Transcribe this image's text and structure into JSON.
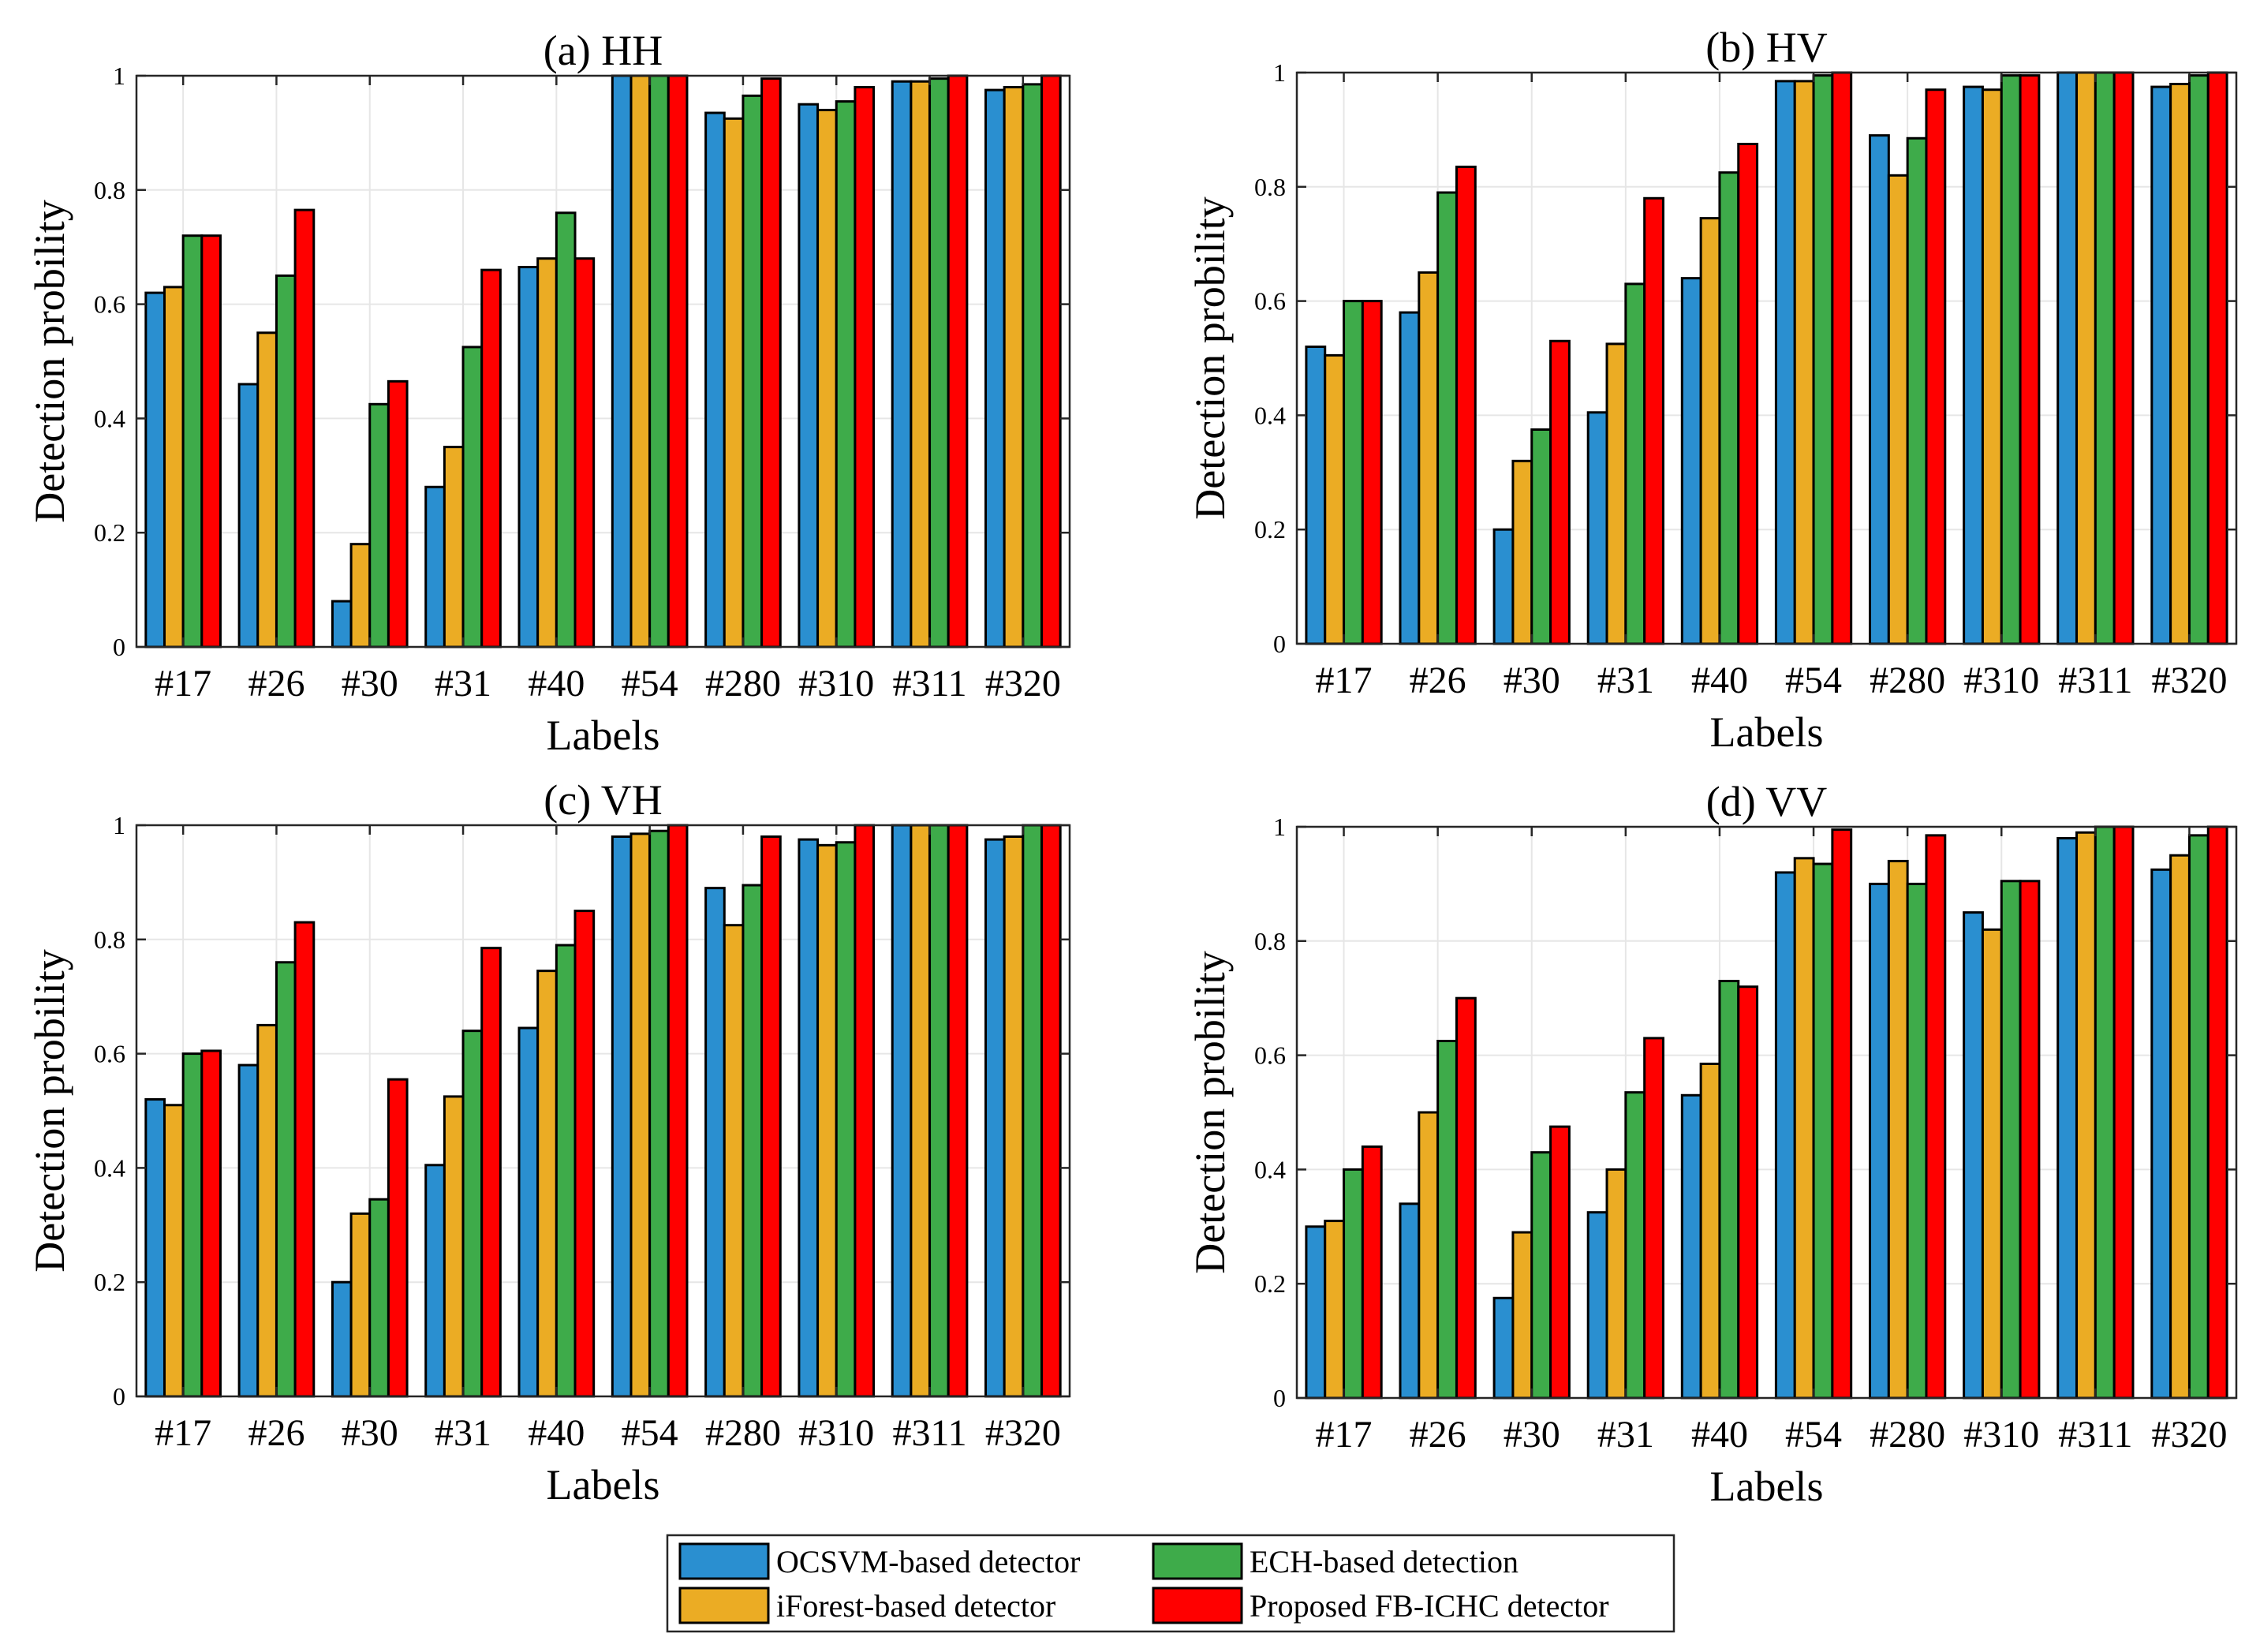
{
  "chart_data": [
    {
      "type": "bar",
      "title": "(a) HH",
      "xlabel": "Labels",
      "ylabel": "Detection probility",
      "ylim": [
        0,
        1
      ],
      "yticks": [
        "0",
        "0.2",
        "0.4",
        "0.6",
        "0.8",
        "1"
      ],
      "grid": true,
      "categories": [
        "#17",
        "#26",
        "#30",
        "#31",
        "#40",
        "#54",
        "#280",
        "#310",
        "#311",
        "#320"
      ],
      "series": [
        {
          "name": "OCSVM-based detector",
          "values": [
            0.62,
            0.46,
            0.08,
            0.28,
            0.665,
            1.0,
            0.935,
            0.95,
            0.99,
            0.975
          ]
        },
        {
          "name": "iForest-based detector",
          "values": [
            0.63,
            0.55,
            0.18,
            0.35,
            0.68,
            1.0,
            0.925,
            0.94,
            0.99,
            0.98
          ]
        },
        {
          "name": "ECH-based detection",
          "values": [
            0.72,
            0.65,
            0.425,
            0.525,
            0.76,
            1.0,
            0.965,
            0.955,
            0.995,
            0.985
          ]
        },
        {
          "name": "Proposed FB-ICHC detector",
          "values": [
            0.72,
            0.765,
            0.465,
            0.66,
            0.68,
            1.0,
            0.995,
            0.98,
            1.0,
            1.0
          ]
        }
      ]
    },
    {
      "type": "bar",
      "title": "(b) HV",
      "xlabel": "Labels",
      "ylabel": "Detection probility",
      "ylim": [
        0,
        1
      ],
      "yticks": [
        "0",
        "0.2",
        "0.4",
        "0.6",
        "0.8",
        "1"
      ],
      "grid": true,
      "categories": [
        "#17",
        "#26",
        "#30",
        "#31",
        "#40",
        "#54",
        "#280",
        "#310",
        "#311",
        "#320"
      ],
      "series": [
        {
          "name": "OCSVM-based detector",
          "values": [
            0.52,
            0.58,
            0.2,
            0.405,
            0.64,
            0.985,
            0.89,
            0.975,
            1.0,
            0.975
          ]
        },
        {
          "name": "iForest-based detector",
          "values": [
            0.505,
            0.65,
            0.32,
            0.525,
            0.745,
            0.985,
            0.82,
            0.97,
            1.0,
            0.98
          ]
        },
        {
          "name": "ECH-based detection",
          "values": [
            0.6,
            0.79,
            0.375,
            0.63,
            0.825,
            0.995,
            0.885,
            0.995,
            1.0,
            0.995
          ]
        },
        {
          "name": "Proposed FB-ICHC detector",
          "values": [
            0.6,
            0.835,
            0.53,
            0.78,
            0.875,
            1.0,
            0.97,
            0.995,
            1.0,
            1.0
          ]
        }
      ]
    },
    {
      "type": "bar",
      "title": "(c) VH",
      "xlabel": "Labels",
      "ylabel": "Detection probility",
      "ylim": [
        0,
        1
      ],
      "yticks": [
        "0",
        "0.2",
        "0.4",
        "0.6",
        "0.8",
        "1"
      ],
      "grid": true,
      "categories": [
        "#17",
        "#26",
        "#30",
        "#31",
        "#40",
        "#54",
        "#280",
        "#310",
        "#311",
        "#320"
      ],
      "series": [
        {
          "name": "OCSVM-based detector",
          "values": [
            0.52,
            0.58,
            0.2,
            0.405,
            0.645,
            0.98,
            0.89,
            0.975,
            1.0,
            0.975
          ]
        },
        {
          "name": "iForest-based detector",
          "values": [
            0.51,
            0.65,
            0.32,
            0.525,
            0.745,
            0.985,
            0.825,
            0.965,
            1.0,
            0.98
          ]
        },
        {
          "name": "ECH-based detection",
          "values": [
            0.6,
            0.76,
            0.345,
            0.64,
            0.79,
            0.99,
            0.895,
            0.97,
            1.0,
            1.0
          ]
        },
        {
          "name": "Proposed FB-ICHC detector",
          "values": [
            0.605,
            0.83,
            0.555,
            0.785,
            0.85,
            1.0,
            0.98,
            1.0,
            1.0,
            1.0
          ]
        }
      ]
    },
    {
      "type": "bar",
      "title": "(d) VV",
      "xlabel": "Labels",
      "ylabel": "Detection probility",
      "ylim": [
        0,
        1
      ],
      "yticks": [
        "0",
        "0.2",
        "0.4",
        "0.6",
        "0.8",
        "1"
      ],
      "grid": true,
      "categories": [
        "#17",
        "#26",
        "#30",
        "#31",
        "#40",
        "#54",
        "#280",
        "#310",
        "#311",
        "#320"
      ],
      "series": [
        {
          "name": "OCSVM-based detector",
          "values": [
            0.3,
            0.34,
            0.175,
            0.325,
            0.53,
            0.92,
            0.9,
            0.85,
            0.98,
            0.925
          ]
        },
        {
          "name": "iForest-based detector",
          "values": [
            0.31,
            0.5,
            0.29,
            0.4,
            0.585,
            0.945,
            0.94,
            0.82,
            0.99,
            0.95
          ]
        },
        {
          "name": "ECH-based detection",
          "values": [
            0.4,
            0.625,
            0.43,
            0.535,
            0.73,
            0.935,
            0.9,
            0.905,
            1.0,
            0.985
          ]
        },
        {
          "name": "Proposed FB-ICHC detector",
          "values": [
            0.44,
            0.7,
            0.475,
            0.63,
            0.72,
            0.995,
            0.985,
            0.905,
            1.0,
            1.0
          ]
        }
      ]
    }
  ],
  "legend": {
    "position": "bottom-center",
    "items": [
      {
        "label": "OCSVM-based detector",
        "color": "#1f77b4"
      },
      {
        "label": "ECH-based detection",
        "color": "#3aa845"
      },
      {
        "label": "iForest-based detector",
        "color": "#e8a317"
      },
      {
        "label": "Proposed FB-ICHC detector",
        "color": "#ff0000"
      }
    ]
  },
  "colors": [
    "#2a8fd0",
    "#ebac24",
    "#3eab4a",
    "#ff0000"
  ]
}
